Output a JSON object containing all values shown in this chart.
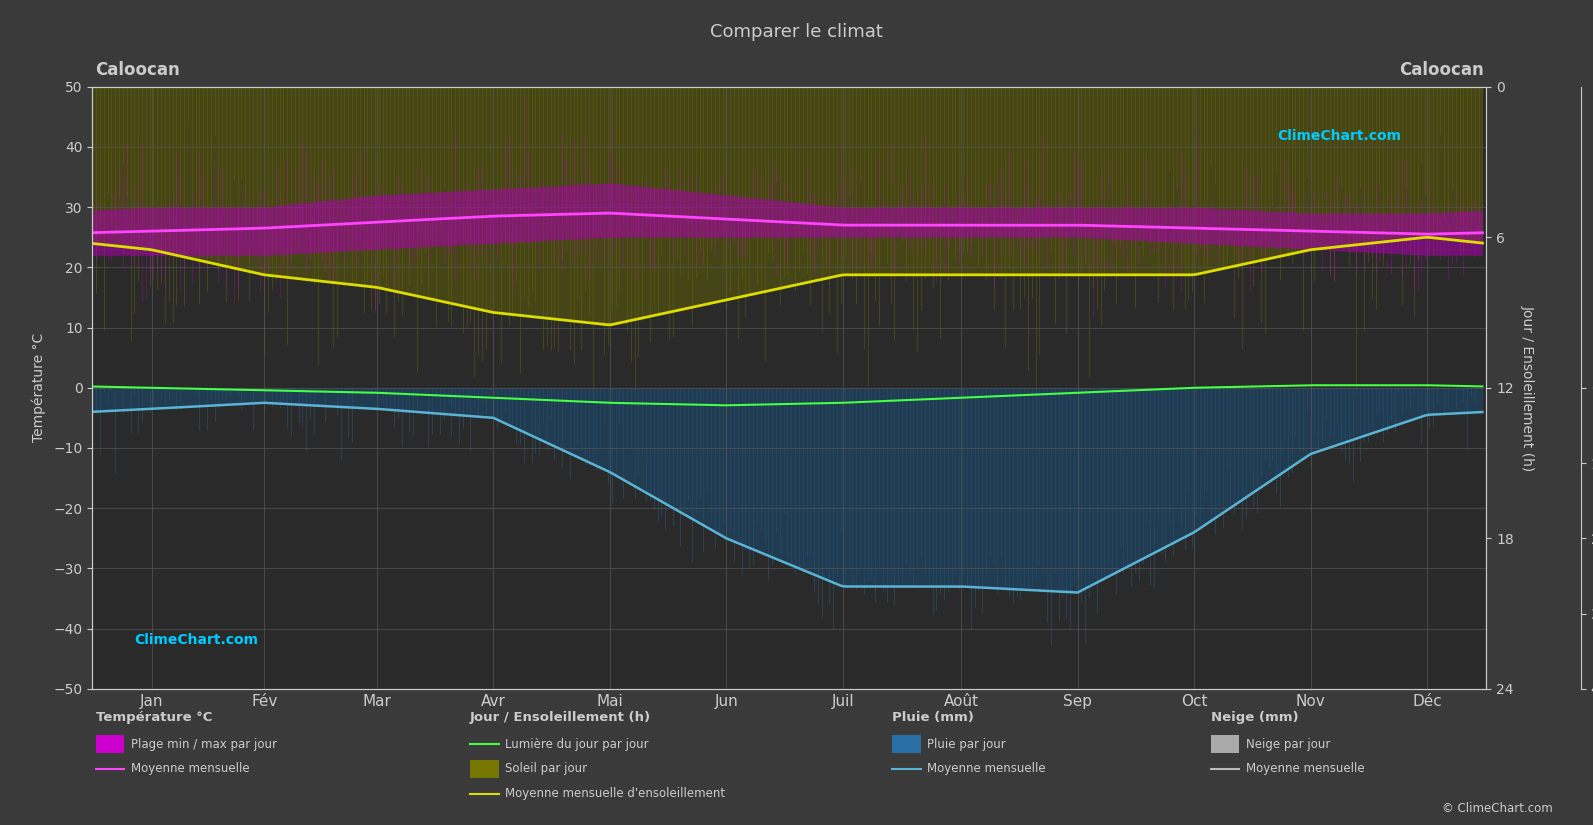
{
  "title": "Comparer le climat",
  "city": "Caloocan",
  "bg_color": "#3a3a3a",
  "plot_bg_color": "#2a2a2a",
  "grid_color": "#555555",
  "text_color": "#cccccc",
  "months": [
    "Jan",
    "Fév",
    "Mar",
    "Avr",
    "Mai",
    "Jun",
    "Juil",
    "Août",
    "Sep",
    "Oct",
    "Nov",
    "Déc"
  ],
  "ylim_left": [
    -50,
    50
  ],
  "temp_min_monthly": [
    22,
    22,
    23,
    24,
    25,
    25,
    25,
    25,
    25,
    24,
    23,
    22
  ],
  "temp_max_monthly": [
    30,
    30,
    32,
    33,
    34,
    32,
    30,
    30,
    30,
    30,
    29,
    29
  ],
  "temp_mean_monthly": [
    26.0,
    26.5,
    27.5,
    28.5,
    29.0,
    28.0,
    27.0,
    27.0,
    27.0,
    26.5,
    26.0,
    25.5
  ],
  "sunshine_hours_monthly": [
    6.5,
    7.5,
    8.0,
    9.0,
    9.5,
    8.5,
    7.5,
    7.5,
    7.5,
    7.5,
    6.5,
    6.0
  ],
  "daylight_hours_monthly": [
    12.0,
    12.1,
    12.2,
    12.4,
    12.6,
    12.7,
    12.6,
    12.4,
    12.2,
    12.0,
    11.9,
    11.9
  ],
  "rain_mm_monthly": [
    15,
    12,
    18,
    35,
    130,
    270,
    430,
    420,
    360,
    195,
    115,
    50
  ],
  "temp_min_daily_spread": 4.0,
  "temp_max_daily_spread": 5.0,
  "sunshine_fill_color": "#6b6b00",
  "sunshine_line_color": "#dddd00",
  "daylight_line_color": "#44ff44",
  "rain_fill_color": "#1e5a8a",
  "rain_line_color": "#5ab4d6",
  "temp_fill_color": "#990099",
  "temp_line_color": "#ff44ff",
  "snow_fill_color": "#888888"
}
